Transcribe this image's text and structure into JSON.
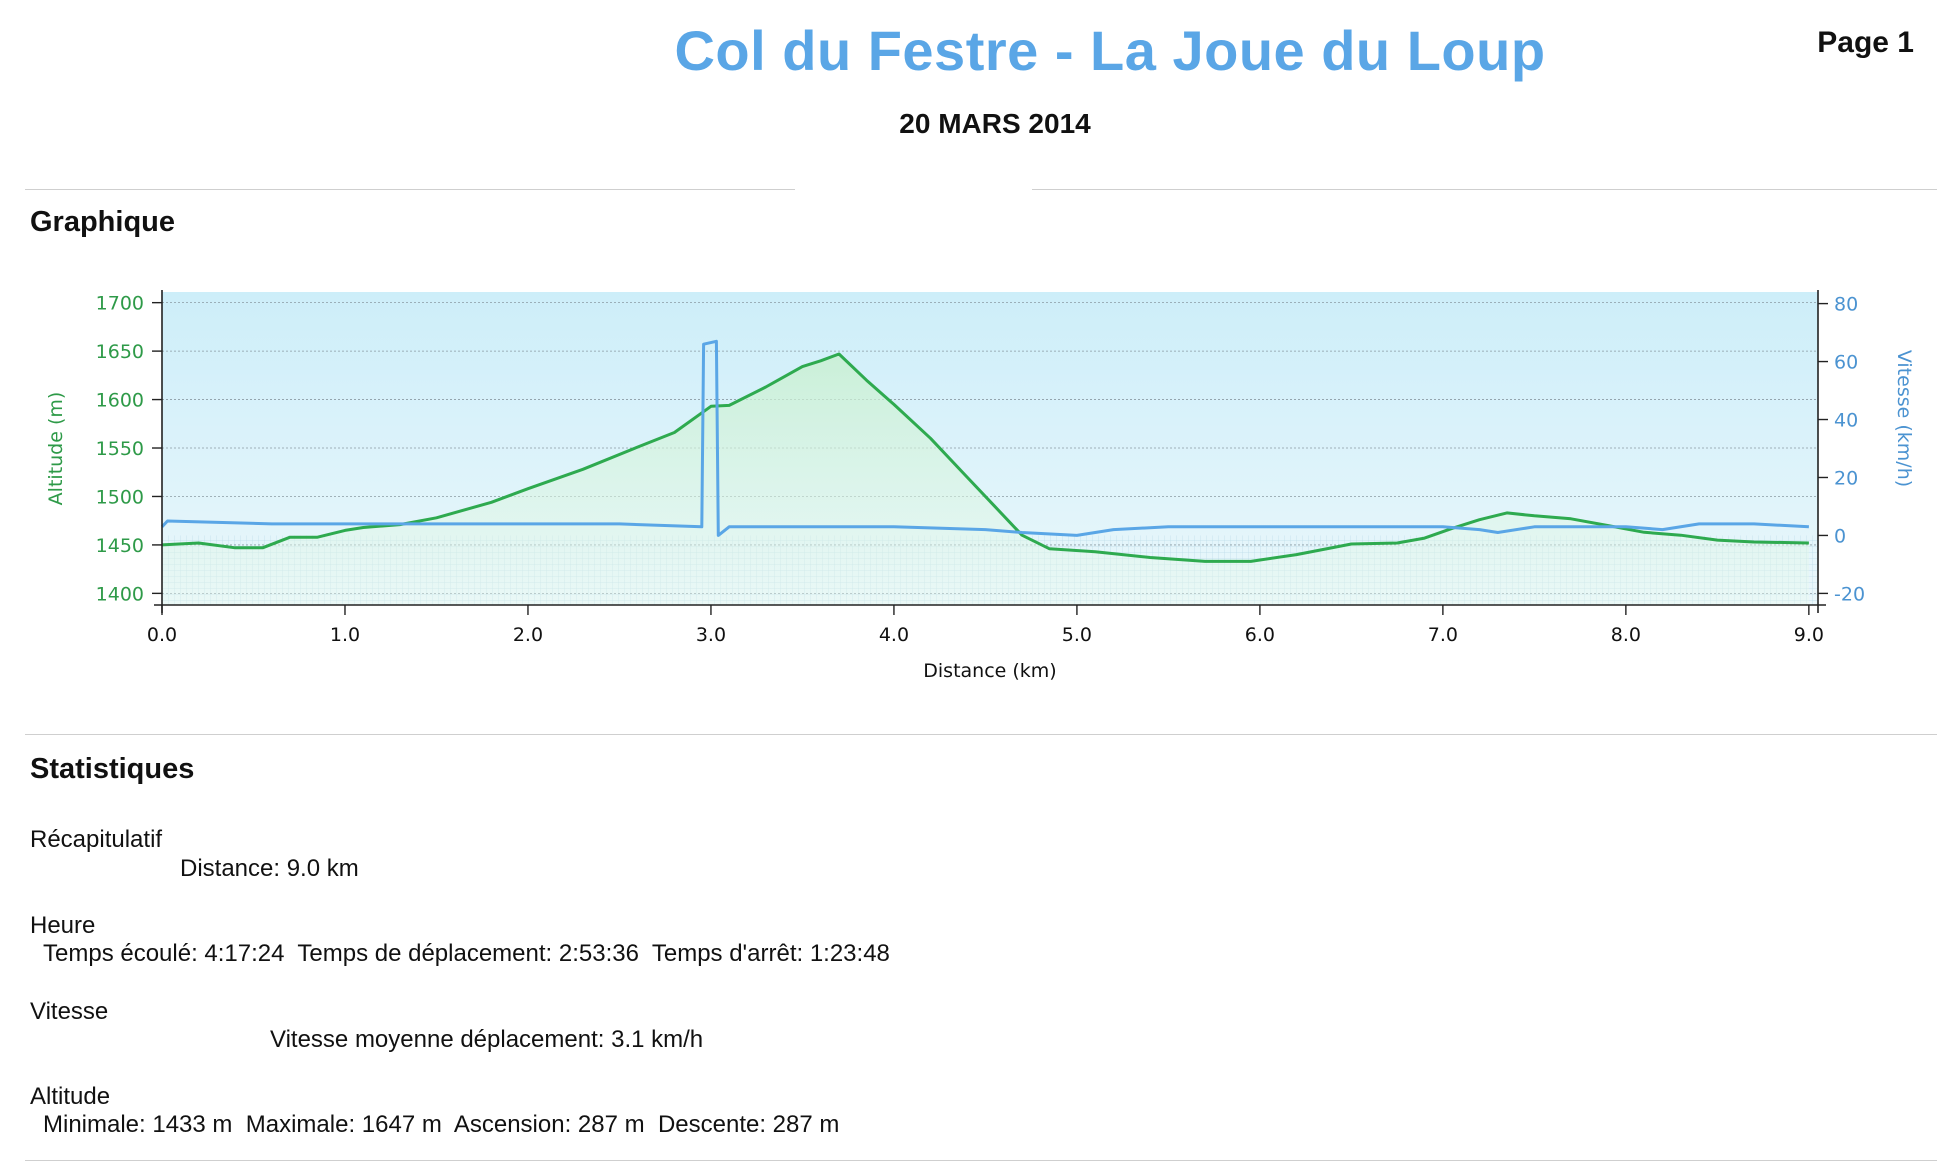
{
  "header": {
    "title": "Col du Festre - La Joue du Loup",
    "page_label": "Page 1",
    "date": "20 MARS 2014"
  },
  "graph_section": {
    "title": "Graphique"
  },
  "stats_section": {
    "title": "Statistiques",
    "recap": {
      "heading": "Récapitulatif",
      "line": "Distance: 9.0 km"
    },
    "heure": {
      "heading": "Heure",
      "line": "Temps écoulé: 4:17:24  Temps de déplacement: 2:53:36  Temps d'arrêt: 1:23:48"
    },
    "vitesse": {
      "heading": "Vitesse",
      "line": "Vitesse moyenne déplacement: 3.1 km/h"
    },
    "altitude": {
      "heading": "Altitude",
      "line": "Minimale: 1433 m  Maximale: 1647 m  Ascension: 287 m  Descente: 287 m"
    }
  },
  "colors": {
    "altitude": "#2eaa4f",
    "speed": "#5aa6e6",
    "plot_bg_top": "#cdeef9",
    "plot_bg_bottom": "#eaf7fb",
    "left_axis": "#2e9a48",
    "right_axis": "#4b93d1"
  },
  "chart_data": {
    "type": "line",
    "xlabel": "Distance   (km)",
    "xlim": [
      0,
      9.05
    ],
    "x_ticks": [
      "0.0",
      "1.0",
      "2.0",
      "3.0",
      "4.0",
      "5.0",
      "6.0",
      "7.0",
      "8.0",
      "9.0"
    ],
    "grid": true,
    "series": [
      {
        "name": "Altitude (m)",
        "axis": "left",
        "ylim": [
          1388,
          1711
        ],
        "y_ticks": [
          "1400",
          "1450",
          "1500",
          "1550",
          "1600",
          "1650",
          "1700"
        ],
        "points": [
          [
            0,
            1450
          ],
          [
            0.2,
            1452
          ],
          [
            0.4,
            1447
          ],
          [
            0.55,
            1447
          ],
          [
            0.7,
            1458
          ],
          [
            0.85,
            1458
          ],
          [
            1.0,
            1465
          ],
          [
            1.1,
            1468
          ],
          [
            1.3,
            1471
          ],
          [
            1.5,
            1478
          ],
          [
            1.8,
            1494
          ],
          [
            2.0,
            1508
          ],
          [
            2.3,
            1528
          ],
          [
            2.6,
            1551
          ],
          [
            2.8,
            1566
          ],
          [
            3.0,
            1593
          ],
          [
            3.1,
            1594
          ],
          [
            3.3,
            1613
          ],
          [
            3.5,
            1634
          ],
          [
            3.6,
            1640
          ],
          [
            3.7,
            1647
          ],
          [
            3.85,
            1620
          ],
          [
            4.0,
            1595
          ],
          [
            4.2,
            1560
          ],
          [
            4.4,
            1520
          ],
          [
            4.55,
            1490
          ],
          [
            4.7,
            1460
          ],
          [
            4.85,
            1446
          ],
          [
            5.1,
            1443
          ],
          [
            5.4,
            1437
          ],
          [
            5.7,
            1433
          ],
          [
            5.95,
            1433
          ],
          [
            6.2,
            1440
          ],
          [
            6.5,
            1451
          ],
          [
            6.75,
            1452
          ],
          [
            6.9,
            1457
          ],
          [
            7.05,
            1467
          ],
          [
            7.2,
            1476
          ],
          [
            7.35,
            1483
          ],
          [
            7.5,
            1480
          ],
          [
            7.7,
            1477
          ],
          [
            7.9,
            1470
          ],
          [
            8.1,
            1463
          ],
          [
            8.3,
            1460
          ],
          [
            8.5,
            1455
          ],
          [
            8.7,
            1453
          ],
          [
            9.0,
            1452
          ]
        ]
      },
      {
        "name": "Vitesse (km/h)",
        "axis": "right",
        "ylim": [
          -24,
          84
        ],
        "y_ticks": [
          "80",
          "60",
          "40",
          "20",
          "0",
          "-20"
        ],
        "points": [
          [
            0,
            3
          ],
          [
            0.03,
            5
          ],
          [
            0.6,
            4
          ],
          [
            1.0,
            4
          ],
          [
            1.5,
            4
          ],
          [
            2.0,
            4
          ],
          [
            2.5,
            4
          ],
          [
            2.95,
            3
          ],
          [
            2.96,
            66
          ],
          [
            3.03,
            67
          ],
          [
            3.04,
            0
          ],
          [
            3.1,
            3
          ],
          [
            3.5,
            3
          ],
          [
            4.0,
            3
          ],
          [
            4.5,
            2
          ],
          [
            4.7,
            1
          ],
          [
            5.0,
            0
          ],
          [
            5.2,
            2
          ],
          [
            5.5,
            3
          ],
          [
            6.0,
            3
          ],
          [
            6.5,
            3
          ],
          [
            7.0,
            3
          ],
          [
            7.2,
            2
          ],
          [
            7.3,
            1
          ],
          [
            7.5,
            3
          ],
          [
            8.0,
            3
          ],
          [
            8.2,
            2
          ],
          [
            8.4,
            4
          ],
          [
            8.7,
            4
          ],
          [
            9.0,
            3
          ]
        ]
      }
    ]
  }
}
